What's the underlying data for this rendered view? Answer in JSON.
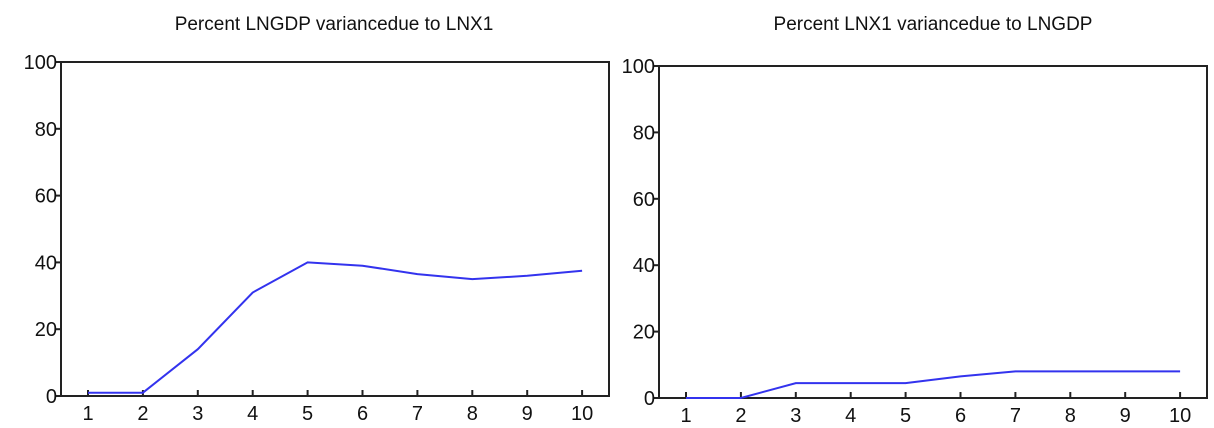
{
  "chart_data": [
    {
      "type": "line",
      "title": "Percent LNGDP variancedue to LNX1",
      "xlabel": "",
      "ylabel": "",
      "x": [
        1,
        2,
        3,
        4,
        5,
        6,
        7,
        8,
        9,
        10
      ],
      "ylim": [
        0,
        100
      ],
      "xticks": [
        "1",
        "2",
        "3",
        "4",
        "5",
        "6",
        "7",
        "8",
        "9",
        "10"
      ],
      "yticks": [
        "0",
        "20",
        "40",
        "60",
        "80",
        "100"
      ],
      "grid": false,
      "series": [
        {
          "values": [
            1.0,
            1.0,
            14.0,
            31.0,
            40.0,
            39.0,
            36.5,
            35.0,
            36.0,
            37.5
          ],
          "color": "#3333ee"
        }
      ]
    },
    {
      "type": "line",
      "title": "Percent LNX1 variancedue to LNGDP",
      "xlabel": "",
      "ylabel": "",
      "x": [
        1,
        2,
        3,
        4,
        5,
        6,
        7,
        8,
        9,
        10
      ],
      "ylim": [
        0,
        100
      ],
      "xticks": [
        "1",
        "2",
        "3",
        "4",
        "5",
        "6",
        "7",
        "8",
        "9",
        "10"
      ],
      "yticks": [
        "0",
        "20",
        "40",
        "60",
        "80",
        "100"
      ],
      "grid": false,
      "series": [
        {
          "values": [
            0.0,
            0.0,
            4.5,
            4.5,
            4.5,
            6.5,
            8.0,
            8.0,
            8.0,
            8.0
          ],
          "color": "#3333ee"
        }
      ]
    }
  ]
}
